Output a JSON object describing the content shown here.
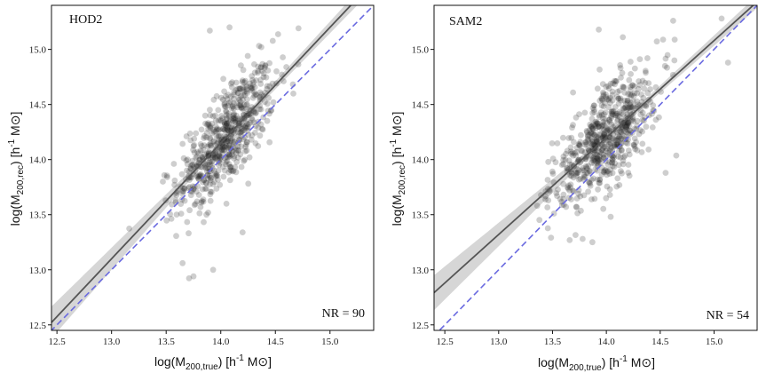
{
  "chart_data": [
    {
      "type": "scatter",
      "title": "HOD2",
      "annotation": "NR = 90",
      "xlabel": "log(M200,true) [h-1 M⊙]",
      "ylabel": "log(M200,rec) [h-1 M⊙]",
      "xlim": [
        12.45,
        15.4
      ],
      "ylim": [
        12.45,
        15.4
      ],
      "xticks": [
        "12.5",
        "13.0",
        "13.5",
        "14.0",
        "14.5",
        "15.0"
      ],
      "yticks": [
        "12.5",
        "13.0",
        "13.5",
        "14.0",
        "14.5",
        "15.0"
      ],
      "fit": {
        "slope": 1.05,
        "intercept_at_14": 14.15,
        "band_halfwidth_low": 0.12,
        "band_halfwidth_high": 0.05
      },
      "one_to_one": true,
      "scatter": {
        "n": 620,
        "x_center": 14.05,
        "x_spread": 0.22,
        "y_scatter": 0.22,
        "outliers": [
          [
            13.9,
            15.17
          ],
          [
            14.08,
            15.2
          ],
          [
            13.65,
            13.06
          ],
          [
            13.93,
            13.0
          ],
          [
            13.75,
            12.94
          ],
          [
            13.47,
            13.8
          ],
          [
            13.51,
            13.84
          ],
          [
            14.6,
            14.84
          ],
          [
            14.2,
            13.34
          ]
        ]
      },
      "colors": {
        "points": "#222222",
        "fit_line": "#555555",
        "band": "#c8c8c8",
        "one_to_one": "#6a6ae0"
      }
    },
    {
      "type": "scatter",
      "title": "SAM2",
      "annotation": "NR = 54",
      "xlabel": "log(M200,true) [h-1 M⊙]",
      "ylabel": "log(M200,rec) [h-1 M⊙]",
      "xlim": [
        12.4,
        15.4
      ],
      "ylim": [
        12.45,
        15.4
      ],
      "xticks": [
        "12.5",
        "13.0",
        "13.5",
        "14.0",
        "14.5",
        "15.0"
      ],
      "yticks": [
        "12.5",
        "13.0",
        "13.5",
        "14.0",
        "14.5",
        "15.0"
      ],
      "fit": {
        "slope": 0.88,
        "intercept_at_14": 14.2,
        "band_halfwidth_low": 0.13,
        "band_halfwidth_high": 0.04
      },
      "one_to_one": true,
      "scatter": {
        "n": 640,
        "x_center": 14.0,
        "x_spread": 0.24,
        "y_scatter": 0.22,
        "outliers": [
          [
            13.93,
            15.18
          ],
          [
            14.62,
            15.26
          ],
          [
            15.13,
            14.88
          ],
          [
            15.07,
            15.28
          ],
          [
            13.78,
            13.28
          ],
          [
            13.87,
            13.25
          ],
          [
            14.04,
            13.48
          ],
          [
            14.55,
            13.88
          ],
          [
            13.6,
            13.96
          ]
        ]
      },
      "colors": {
        "points": "#222222",
        "fit_line": "#555555",
        "band": "#c8c8c8",
        "one_to_one": "#6a6ae0"
      }
    }
  ],
  "labels": {
    "x_main": "log(M",
    "x_sub": "200,true",
    "x_mid": ") [h",
    "x_sup": "-1",
    "x_end": " M⊙]",
    "y_main": "log(M",
    "y_sub": "200,rec",
    "y_mid": ") [h",
    "y_sup": "-1",
    "y_end": " M⊙]"
  }
}
